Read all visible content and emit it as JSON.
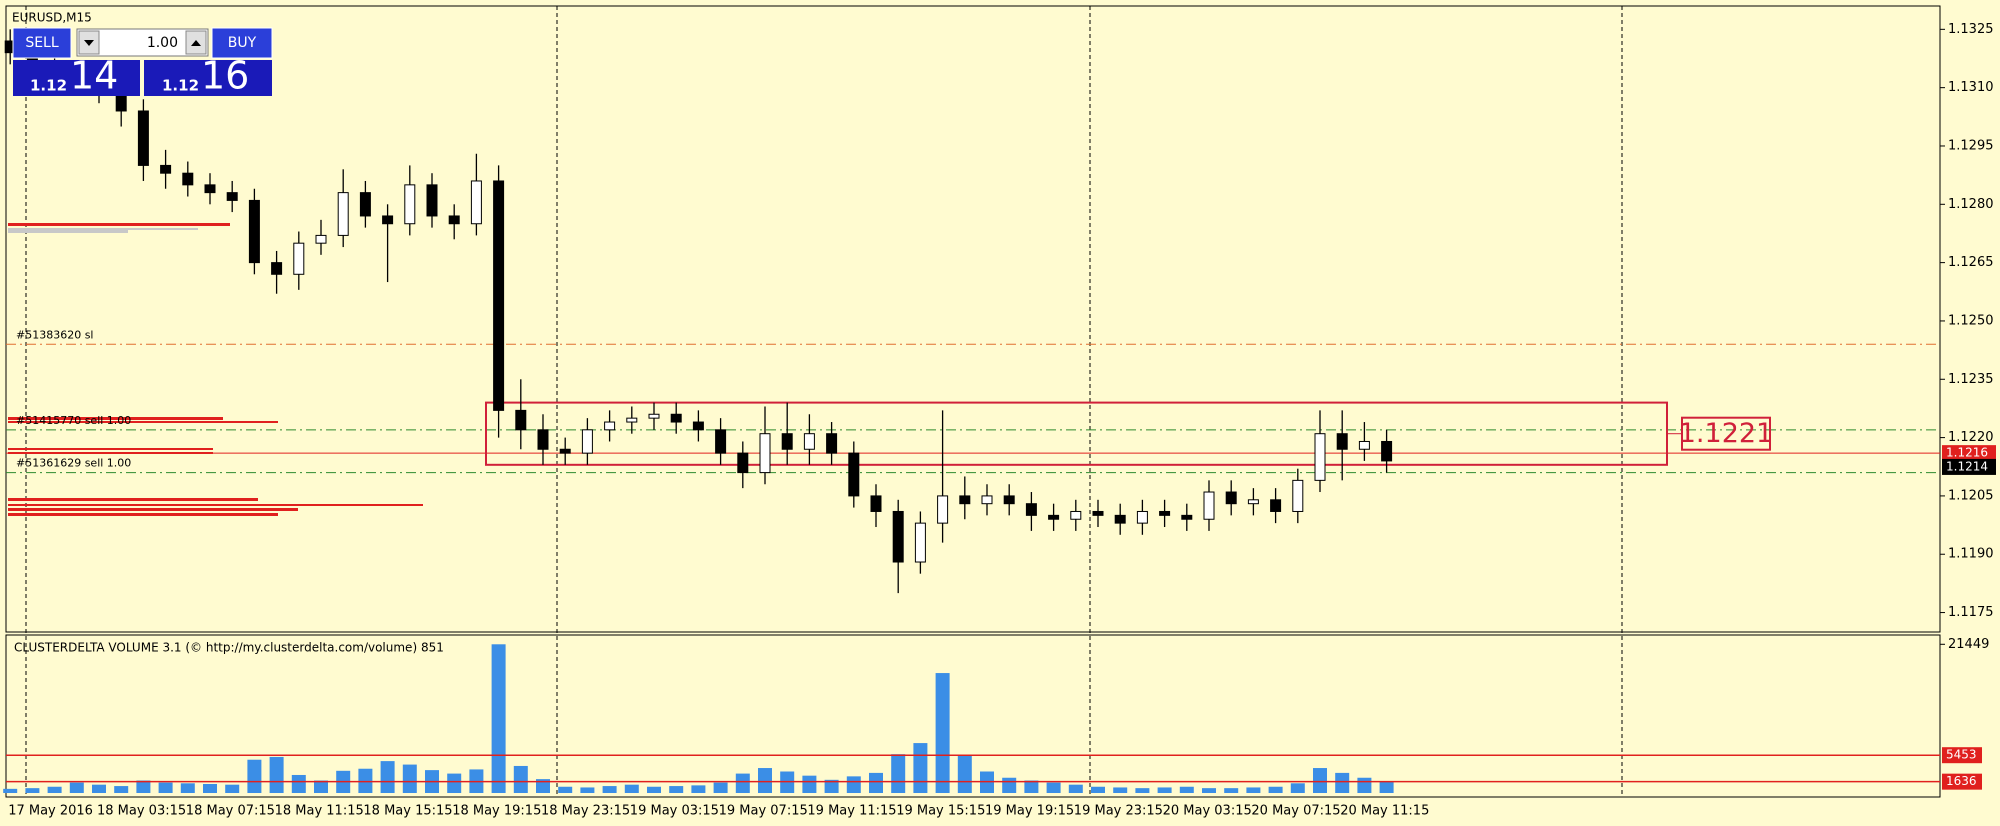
{
  "trade_panel": {
    "sell": "SELL",
    "buy": "BUY",
    "lots": "1.00",
    "sell_prefix": "1.12",
    "sell_pips": "14",
    "buy_prefix": "1.12",
    "buy_pips": "16"
  },
  "chart_data": [
    {
      "type": "candlestick",
      "title": "EURUSD,M15",
      "categories": [
        "17 May 2016",
        null,
        null,
        null,
        "18 May 03:15",
        null,
        null,
        null,
        "18 May 07:15",
        null,
        null,
        null,
        "18 May 11:15",
        null,
        null,
        null,
        "18 May 15:15",
        null,
        null,
        null,
        "18 May 19:15",
        null,
        null,
        null,
        "18 May 23:15",
        null,
        null,
        null,
        "19 May 03:15",
        null,
        null,
        null,
        "19 May 07:15",
        null,
        null,
        null,
        "19 May 11:15",
        null,
        null,
        null,
        "19 May 15:15",
        null,
        null,
        null,
        "19 May 19:15",
        null,
        null,
        null,
        "19 May 23:15",
        null,
        null,
        null,
        "20 May 03:15",
        null,
        null,
        null,
        "20 May 07:15",
        null,
        null,
        null,
        "20 May 11:15",
        null,
        null
      ],
      "open": [
        1.1322,
        1.1319,
        1.1316,
        1.1314,
        1.1311,
        1.1309,
        1.1304,
        1.129,
        1.1288,
        1.1285,
        1.1283,
        1.1281,
        1.1265,
        1.1262,
        1.127,
        1.1272,
        1.1283,
        1.1277,
        1.1275,
        1.1285,
        1.1277,
        1.1275,
        1.1286,
        1.1227,
        1.1222,
        1.1217,
        1.1216,
        1.1222,
        1.1224,
        1.1225,
        1.1226,
        1.1224,
        1.1222,
        1.1216,
        1.1211,
        1.1221,
        1.1217,
        1.1221,
        1.1216,
        1.1205,
        1.1201,
        1.1188,
        1.1198,
        1.1205,
        1.1203,
        1.1205,
        1.1203,
        1.12,
        1.1199,
        1.1201,
        1.12,
        1.1198,
        1.1201,
        1.12,
        1.1199,
        1.1206,
        1.1203,
        1.1204,
        1.1201,
        1.1209,
        1.1221,
        1.1217,
        1.1219
      ],
      "high": [
        1.1325,
        1.1323,
        1.1319,
        1.1317,
        1.1314,
        1.1312,
        1.1307,
        1.1294,
        1.1291,
        1.1288,
        1.1286,
        1.1284,
        1.1268,
        1.1273,
        1.1276,
        1.1289,
        1.1286,
        1.128,
        1.129,
        1.1288,
        1.128,
        1.1293,
        1.129,
        1.1235,
        1.1226,
        1.122,
        1.1225,
        1.1227,
        1.1228,
        1.1229,
        1.1229,
        1.1227,
        1.1225,
        1.1219,
        1.1228,
        1.1229,
        1.1226,
        1.1224,
        1.1219,
        1.1208,
        1.1204,
        1.1201,
        1.1227,
        1.121,
        1.1208,
        1.1208,
        1.1206,
        1.1203,
        1.1204,
        1.1204,
        1.1203,
        1.1204,
        1.1204,
        1.1203,
        1.1209,
        1.1209,
        1.1207,
        1.1207,
        1.1212,
        1.1227,
        1.1227,
        1.1224,
        1.1222
      ],
      "low": [
        1.1316,
        1.1313,
        1.1311,
        1.1308,
        1.1306,
        1.13,
        1.1286,
        1.1284,
        1.1282,
        1.128,
        1.1278,
        1.1262,
        1.1257,
        1.1258,
        1.1267,
        1.1269,
        1.1274,
        1.126,
        1.1272,
        1.1274,
        1.1271,
        1.1272,
        1.122,
        1.1217,
        1.1213,
        1.1213,
        1.1213,
        1.1219,
        1.1221,
        1.1222,
        1.1221,
        1.1219,
        1.1213,
        1.1207,
        1.1208,
        1.1213,
        1.1213,
        1.1213,
        1.1202,
        1.1197,
        1.118,
        1.1185,
        1.1193,
        1.1199,
        1.12,
        1.12,
        1.1196,
        1.1196,
        1.1196,
        1.1197,
        1.1195,
        1.1195,
        1.1197,
        1.1196,
        1.1196,
        1.12,
        1.12,
        1.1198,
        1.1198,
        1.1206,
        1.1209,
        1.1214,
        1.1211
      ],
      "close": [
        1.1319,
        1.1316,
        1.1314,
        1.1311,
        1.1309,
        1.1304,
        1.129,
        1.1288,
        1.1285,
        1.1283,
        1.1281,
        1.1265,
        1.1262,
        1.127,
        1.1272,
        1.1283,
        1.1277,
        1.1275,
        1.1285,
        1.1277,
        1.1275,
        1.1286,
        1.1227,
        1.1222,
        1.1217,
        1.1216,
        1.1222,
        1.1224,
        1.1225,
        1.1226,
        1.1224,
        1.1222,
        1.1216,
        1.1211,
        1.1221,
        1.1217,
        1.1221,
        1.1216,
        1.1205,
        1.1201,
        1.1188,
        1.1198,
        1.1205,
        1.1203,
        1.1205,
        1.1203,
        1.12,
        1.1199,
        1.1201,
        1.12,
        1.1198,
        1.1201,
        1.12,
        1.1199,
        1.1206,
        1.1203,
        1.1204,
        1.1201,
        1.1209,
        1.1221,
        1.1217,
        1.1219,
        1.1214
      ],
      "up_color": "#ffffff",
      "down_color": "#000000",
      "ylim": [
        1.117,
        1.1331
      ],
      "yticks": [
        1.1325,
        {
          "value": 1.131,
          "label": "1.1310"
        },
        1.1295,
        {
          "value": 1.128,
          "label": "1.1280"
        },
        1.1265,
        {
          "value": 1.125,
          "label": "1.1250"
        },
        1.1235,
        {
          "value": 1.122,
          "label": "1.1220"
        },
        1.1205,
        {
          "value": 1.119,
          "label": "1.1190"
        },
        1.1175
      ],
      "orders": [
        {
          "label": "#51383620 sl",
          "price": 1.1244,
          "color": "#e07030"
        },
        {
          "label": "#51415770 sell 1.00",
          "price": 1.1222,
          "color": "#2e8b2e"
        },
        {
          "label": "#51361629 sell 1.00",
          "price": 1.1211,
          "color": "#2e8b2e"
        }
      ],
      "zone": {
        "label": "1.1221",
        "top": 1.1229,
        "bottom": 1.1213,
        "color": "#d0203a"
      },
      "ask": 1.1216,
      "ask_color": "#e0201e",
      "bid": 1.1214
    },
    {
      "type": "bar",
      "title": "CLUSTERDELTA VOLUME 3.1 (© http://my.clusterdelta.com/volume) 851",
      "values": [
        600,
        700,
        900,
        1500,
        1200,
        1000,
        1800,
        1500,
        1400,
        1300,
        1200,
        4800,
        5200,
        2600,
        1800,
        3200,
        3500,
        4600,
        4100,
        3300,
        2800,
        3400,
        21449,
        3900,
        2000,
        900,
        800,
        1000,
        1200,
        900,
        1000,
        1100,
        1500,
        2800,
        3600,
        3100,
        2500,
        1900,
        2400,
        2900,
        5600,
        7200,
        17300,
        5400,
        3100,
        2200,
        1800,
        1500,
        1200,
        900,
        800,
        700,
        800,
        900,
        700,
        700,
        800,
        900,
        1400,
        3600,
        2900,
        2200,
        1600
      ],
      "color": "#3b8ee6",
      "ylim": [
        0,
        22500
      ],
      "yticks": [
        21449
      ],
      "levels": [
        5453,
        1636
      ],
      "level_color": "#e0201e"
    }
  ]
}
